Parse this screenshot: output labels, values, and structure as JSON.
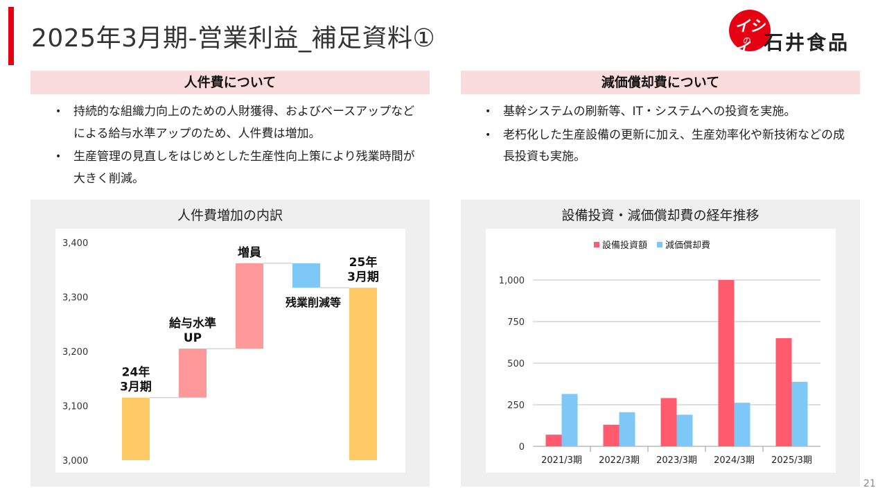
{
  "header": {
    "title": "2025年3月期-営業利益_補足資料①",
    "logo_kana": "イシイ",
    "logo_no": "の",
    "logo_text": "石井食品"
  },
  "left": {
    "heading": "人件費について",
    "bullets": [
      "持続的な組織力向上のための人財獲得、およびベースアップなどによる給与水準アップのため、人件費は増加。",
      "生産管理の見直しをはじめとした生産性向上策により残業時間が大きく削減。"
    ]
  },
  "right": {
    "heading": "減価償却費について",
    "bullets": [
      "基幹システムの刷新等、IT・システムへの投資を実施。",
      "老朽化した生産設備の更新に加え、生産効率化や新技術などの成長投資も実施。"
    ]
  },
  "bullet_symbol": "•",
  "page_number": "21",
  "colors": {
    "accent": "#e50012",
    "header_bg": "#fbdcdc",
    "panel_bg": "#efefef",
    "bar_total": "#ffc966",
    "bar_increase": "#ff9999",
    "bar_decrease": "#7ec8f8",
    "bar_capex": "#ff5a6e",
    "bar_depreciation": "#7ec8f8"
  },
  "chart_data": [
    {
      "type": "bar",
      "subtype": "waterfall",
      "title": "人件費増加の内訳",
      "ylim": [
        3000,
        3400
      ],
      "yticks": [
        3000,
        3100,
        3200,
        3300,
        3400
      ],
      "ytick_labels": [
        "3,000",
        "3,100",
        "3,200",
        "3,300",
        "3,400"
      ],
      "grid": false,
      "steps": [
        {
          "label": "24年\n3月期",
          "kind": "total",
          "value": 3115
        },
        {
          "label": "給与水準\nUP",
          "kind": "increase",
          "value": 90
        },
        {
          "label": "増員",
          "kind": "increase",
          "value": 157
        },
        {
          "label": "残業削減等",
          "kind": "decrease",
          "value": -45
        },
        {
          "label": "25年\n3月期",
          "kind": "total",
          "value": 3317
        }
      ]
    },
    {
      "type": "bar",
      "title": "設備投資・減価償却費の経年推移",
      "categories": [
        "2021/3期",
        "2022/3期",
        "2023/3期",
        "2024/3期",
        "2025/3期"
      ],
      "series": [
        {
          "name": "設備投資額",
          "values": [
            70,
            130,
            290,
            1000,
            650
          ]
        },
        {
          "name": "減価償却費",
          "values": [
            315,
            205,
            190,
            262,
            388
          ]
        }
      ],
      "ylim": [
        0,
        1100
      ],
      "yticks": [
        0,
        250,
        500,
        750,
        1000
      ],
      "ytick_labels": [
        "0",
        "250",
        "500",
        "750",
        "1,000"
      ],
      "grid": true,
      "legend_position": "top"
    }
  ]
}
